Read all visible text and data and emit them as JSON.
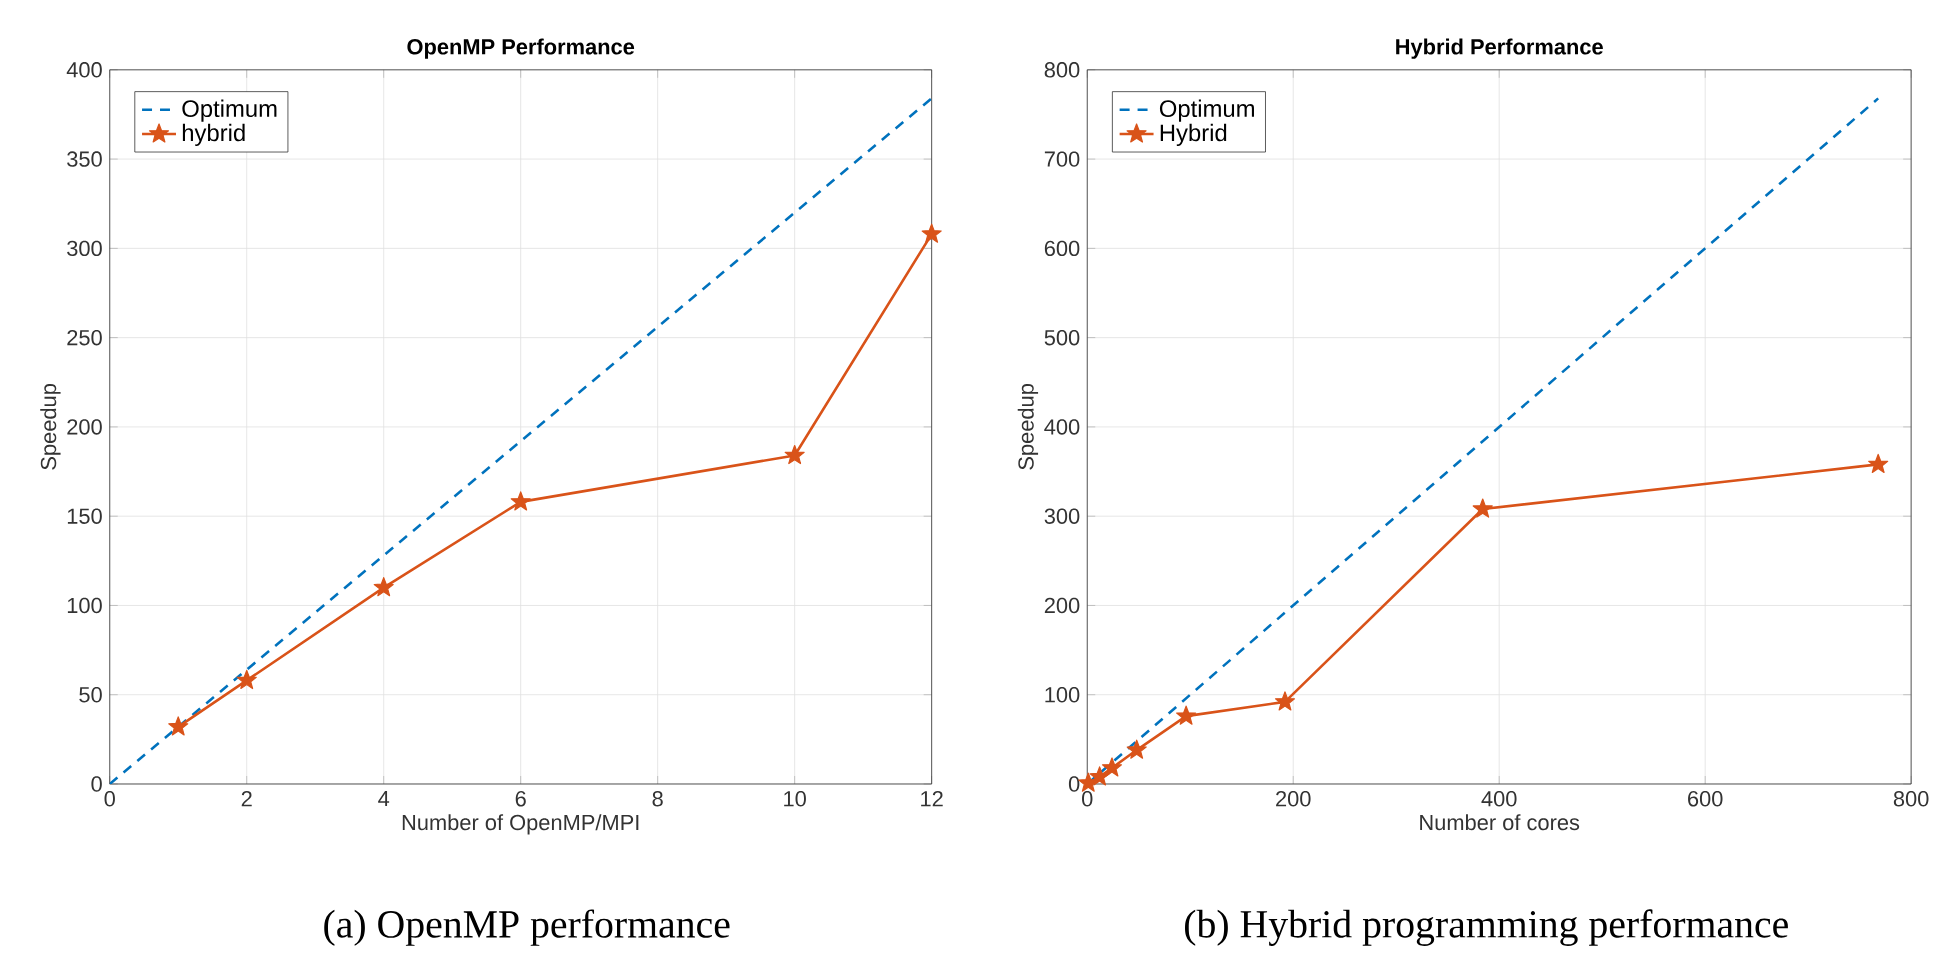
{
  "chart_data": [
    {
      "type": "line",
      "title": "OpenMP Performance",
      "xlabel": "Number of OpenMP/MPI",
      "ylabel": "Speedup",
      "annotations": [
        "(a) OpenMP performance"
      ],
      "xlim": [
        0,
        12
      ],
      "ylim": [
        0,
        400
      ],
      "xticks": [
        0,
        2,
        4,
        6,
        8,
        10,
        12
      ],
      "yticks": [
        0,
        50,
        100,
        150,
        200,
        250,
        300,
        350,
        400
      ],
      "grid": true,
      "legend": "top left",
      "series": [
        {
          "name": "Optimum",
          "color": "#0072bd",
          "line_style": "dashed",
          "marker": "none",
          "x": [
            0,
            12
          ],
          "values": [
            0,
            384
          ]
        },
        {
          "name": "hybrid",
          "color": "#d95319",
          "line_style": "solid",
          "marker": "star",
          "x": [
            1,
            2,
            4,
            6,
            10,
            12
          ],
          "values": [
            32,
            58,
            110,
            158,
            184,
            308
          ]
        }
      ]
    },
    {
      "type": "line",
      "title": "Hybrid Performance",
      "xlabel": "Number of cores",
      "ylabel": "Speedup",
      "annotations": [
        "(b) Hybrid programming performance"
      ],
      "xlim": [
        0,
        800
      ],
      "ylim": [
        0,
        800
      ],
      "xticks": [
        0,
        200,
        400,
        600,
        800
      ],
      "yticks": [
        0,
        100,
        200,
        300,
        400,
        500,
        600,
        700,
        800
      ],
      "grid": true,
      "legend": "top left",
      "series": [
        {
          "name": "Optimum",
          "color": "#0072bd",
          "line_style": "dashed",
          "marker": "none",
          "x": [
            0,
            768
          ],
          "values": [
            0,
            768
          ]
        },
        {
          "name": "Hybrid",
          "color": "#d95319",
          "line_style": "solid",
          "marker": "star",
          "x": [
            1,
            12,
            24,
            48,
            96,
            192,
            384,
            768
          ],
          "values": [
            1,
            8,
            18,
            38,
            76,
            92,
            308,
            358
          ]
        }
      ]
    }
  ]
}
